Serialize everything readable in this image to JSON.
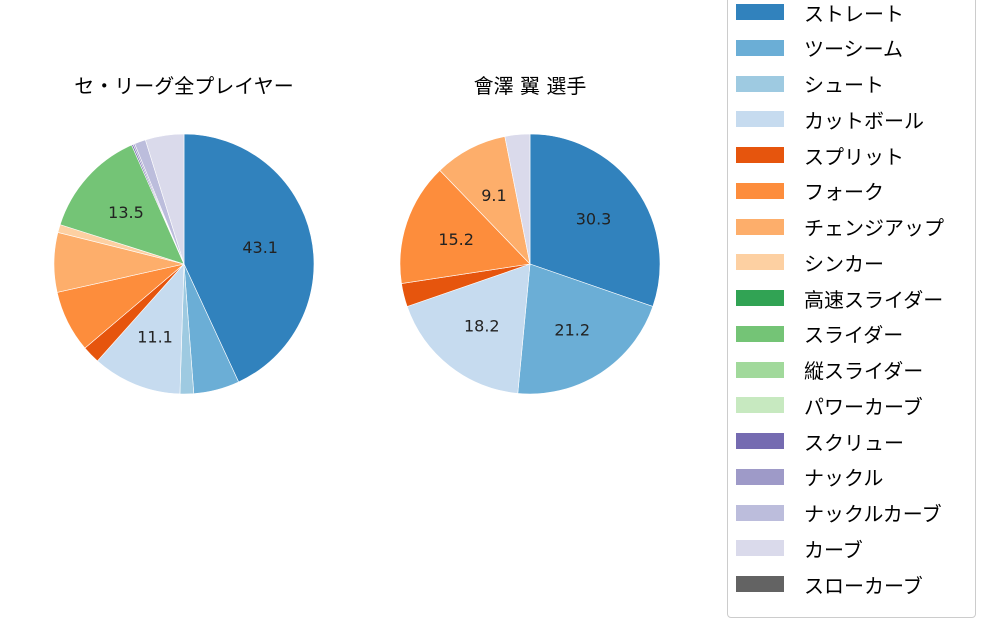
{
  "chart_data": [
    {
      "type": "pie",
      "title": "セ・リーグ全プレイヤー",
      "start_angle": 90,
      "direction": "clockwise",
      "categories": [
        "ストレート",
        "ツーシーム",
        "シュート",
        "カットボール",
        "スプリット",
        "フォーク",
        "チェンジアップ",
        "シンカー",
        "高速スライダー",
        "スライダー",
        "縦スライダー",
        "パワーカーブ",
        "スクリュー",
        "ナックル",
        "ナックルカーブ",
        "カーブ",
        "スローカーブ"
      ],
      "values": [
        43.1,
        5.7,
        1.7,
        11.1,
        2.2,
        7.7,
        7.4,
        1.0,
        0.0,
        13.5,
        0.0,
        0.0,
        0.2,
        0.2,
        1.4,
        4.8,
        0.0
      ],
      "labeled_values": {
        "ストレート": 43.1,
        "カットボール": 11.1,
        "スライダー": 13.5
      }
    },
    {
      "type": "pie",
      "title": "會澤 翼  選手",
      "start_angle": 90,
      "direction": "clockwise",
      "categories": [
        "ストレート",
        "ツーシーム",
        "シュート",
        "カットボール",
        "スプリット",
        "フォーク",
        "チェンジアップ",
        "シンカー",
        "高速スライダー",
        "スライダー",
        "縦スライダー",
        "パワーカーブ",
        "スクリュー",
        "ナックル",
        "ナックルカーブ",
        "カーブ",
        "スローカーブ"
      ],
      "values": [
        30.3,
        21.2,
        0.0,
        18.2,
        2.9,
        15.2,
        9.1,
        0.0,
        0.0,
        0.0,
        0.0,
        0.0,
        0.0,
        0.0,
        0.0,
        3.1,
        0.0
      ],
      "labeled_values": {
        "ストレート": 30.3,
        "ツーシーム": 21.2,
        "カットボール": 18.2,
        "フォーク": 15.2,
        "チェンジアップ": 9.1
      }
    }
  ],
  "titles": {
    "left": "セ・リーグ全プレイヤー",
    "right": "會澤 翼  選手"
  },
  "legend": {
    "items": [
      {
        "label": "ストレート",
        "color": "#3182bd"
      },
      {
        "label": "ツーシーム",
        "color": "#6baed6"
      },
      {
        "label": "シュート",
        "color": "#9ecae1"
      },
      {
        "label": "カットボール",
        "color": "#c6dbef"
      },
      {
        "label": "スプリット",
        "color": "#e6550d"
      },
      {
        "label": "フォーク",
        "color": "#fd8d3c"
      },
      {
        "label": "チェンジアップ",
        "color": "#fdae6b"
      },
      {
        "label": "シンカー",
        "color": "#fdd0a2"
      },
      {
        "label": "高速スライダー",
        "color": "#31a354"
      },
      {
        "label": "スライダー",
        "color": "#74c476"
      },
      {
        "label": "縦スライダー",
        "color": "#a1d99b"
      },
      {
        "label": "パワーカーブ",
        "color": "#c7e9c0"
      },
      {
        "label": "スクリュー",
        "color": "#756bb1"
      },
      {
        "label": "ナックル",
        "color": "#9e9ac8"
      },
      {
        "label": "ナックルカーブ",
        "color": "#bcbddc"
      },
      {
        "label": "カーブ",
        "color": "#dadaeb"
      },
      {
        "label": "スローカーブ",
        "color": "#636363"
      }
    ]
  }
}
